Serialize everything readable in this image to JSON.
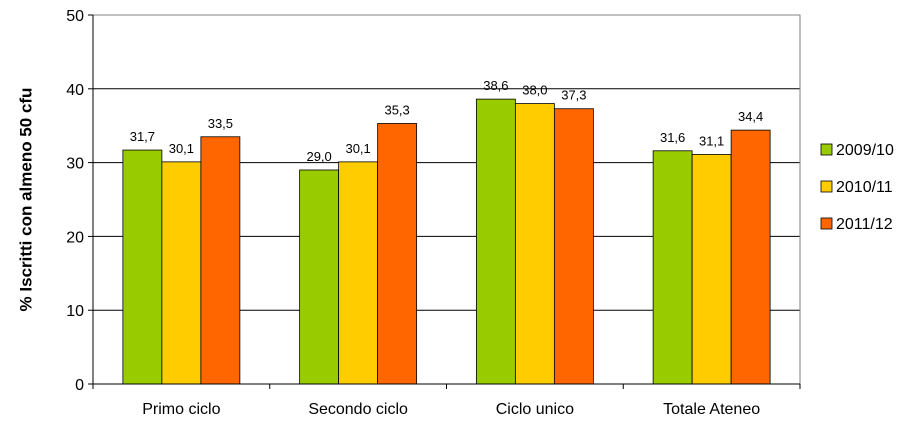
{
  "chart_data": {
    "type": "bar",
    "title": "",
    "xlabel": "",
    "ylabel": "% Iscritti con almeno 50 cfu",
    "ylim": [
      0,
      50
    ],
    "yticks": [
      0,
      10,
      20,
      30,
      40,
      50
    ],
    "grid": true,
    "legend_position": "right",
    "categories": [
      "Primo ciclo",
      "Secondo ciclo",
      "Ciclo unico",
      "Totale Ateneo"
    ],
    "series": [
      {
        "name": "2009/10",
        "color": "#99CC00",
        "values": [
          31.7,
          29.0,
          38.6,
          31.6
        ],
        "labels": [
          "31,7",
          "29,0",
          "38,6",
          "31,6"
        ]
      },
      {
        "name": "2010/11",
        "color": "#FFCC00",
        "values": [
          30.1,
          30.1,
          38.0,
          31.1
        ],
        "labels": [
          "30,1",
          "30,1",
          "38,0",
          "31,1"
        ]
      },
      {
        "name": "2011/12",
        "color": "#FF6600",
        "values": [
          33.5,
          35.3,
          37.3,
          34.4
        ],
        "labels": [
          "33,5",
          "35,3",
          "37,3",
          "34,4"
        ]
      }
    ]
  }
}
